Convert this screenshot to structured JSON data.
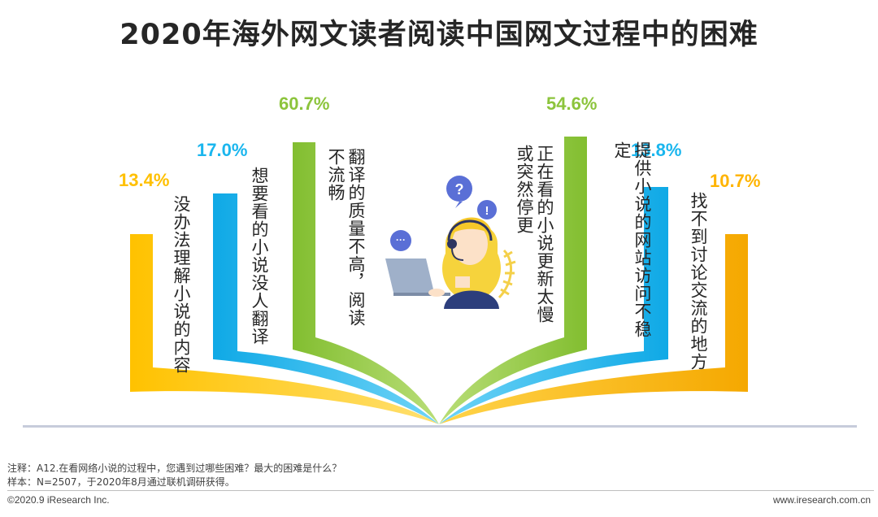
{
  "title": "2020年海外网文读者阅读中国网文过程中的困难",
  "chart_data": {
    "type": "bar",
    "title": "2020年海外网文读者阅读中国网文过程中的困难",
    "categories": [
      "没办法理解小说的内容",
      "想要看的小说没人翻译",
      "翻译的质量不高，阅读不流畅",
      "正在看的小说更新太慢或突然停更",
      "提供小说的网站访问不稳定",
      "找不到讨论交流的地方"
    ],
    "values": [
      13.4,
      17.0,
      60.7,
      54.6,
      13.8,
      10.7
    ],
    "value_labels": [
      "13.4%",
      "17.0%",
      "60.7%",
      "54.6%",
      "13.8%",
      "10.7%"
    ],
    "unit": "%",
    "colors": [
      "#FFC800",
      "#1AB6EE",
      "#8CC43C",
      "#8CC43C",
      "#1AB6EE",
      "#FFB400"
    ]
  },
  "icons": {
    "question": "?",
    "exclaim": "!",
    "chat": "···"
  },
  "notes": {
    "note": "注释：A12.在看网络小说的过程中，您遇到过哪些困难？最大的困难是什么？",
    "sample": "样本：N=2507，于2020年8月通过联机调研获得。"
  },
  "footer": {
    "copyright": "©2020.9 iResearch Inc.",
    "website": "www.iresearch.com.cn"
  }
}
